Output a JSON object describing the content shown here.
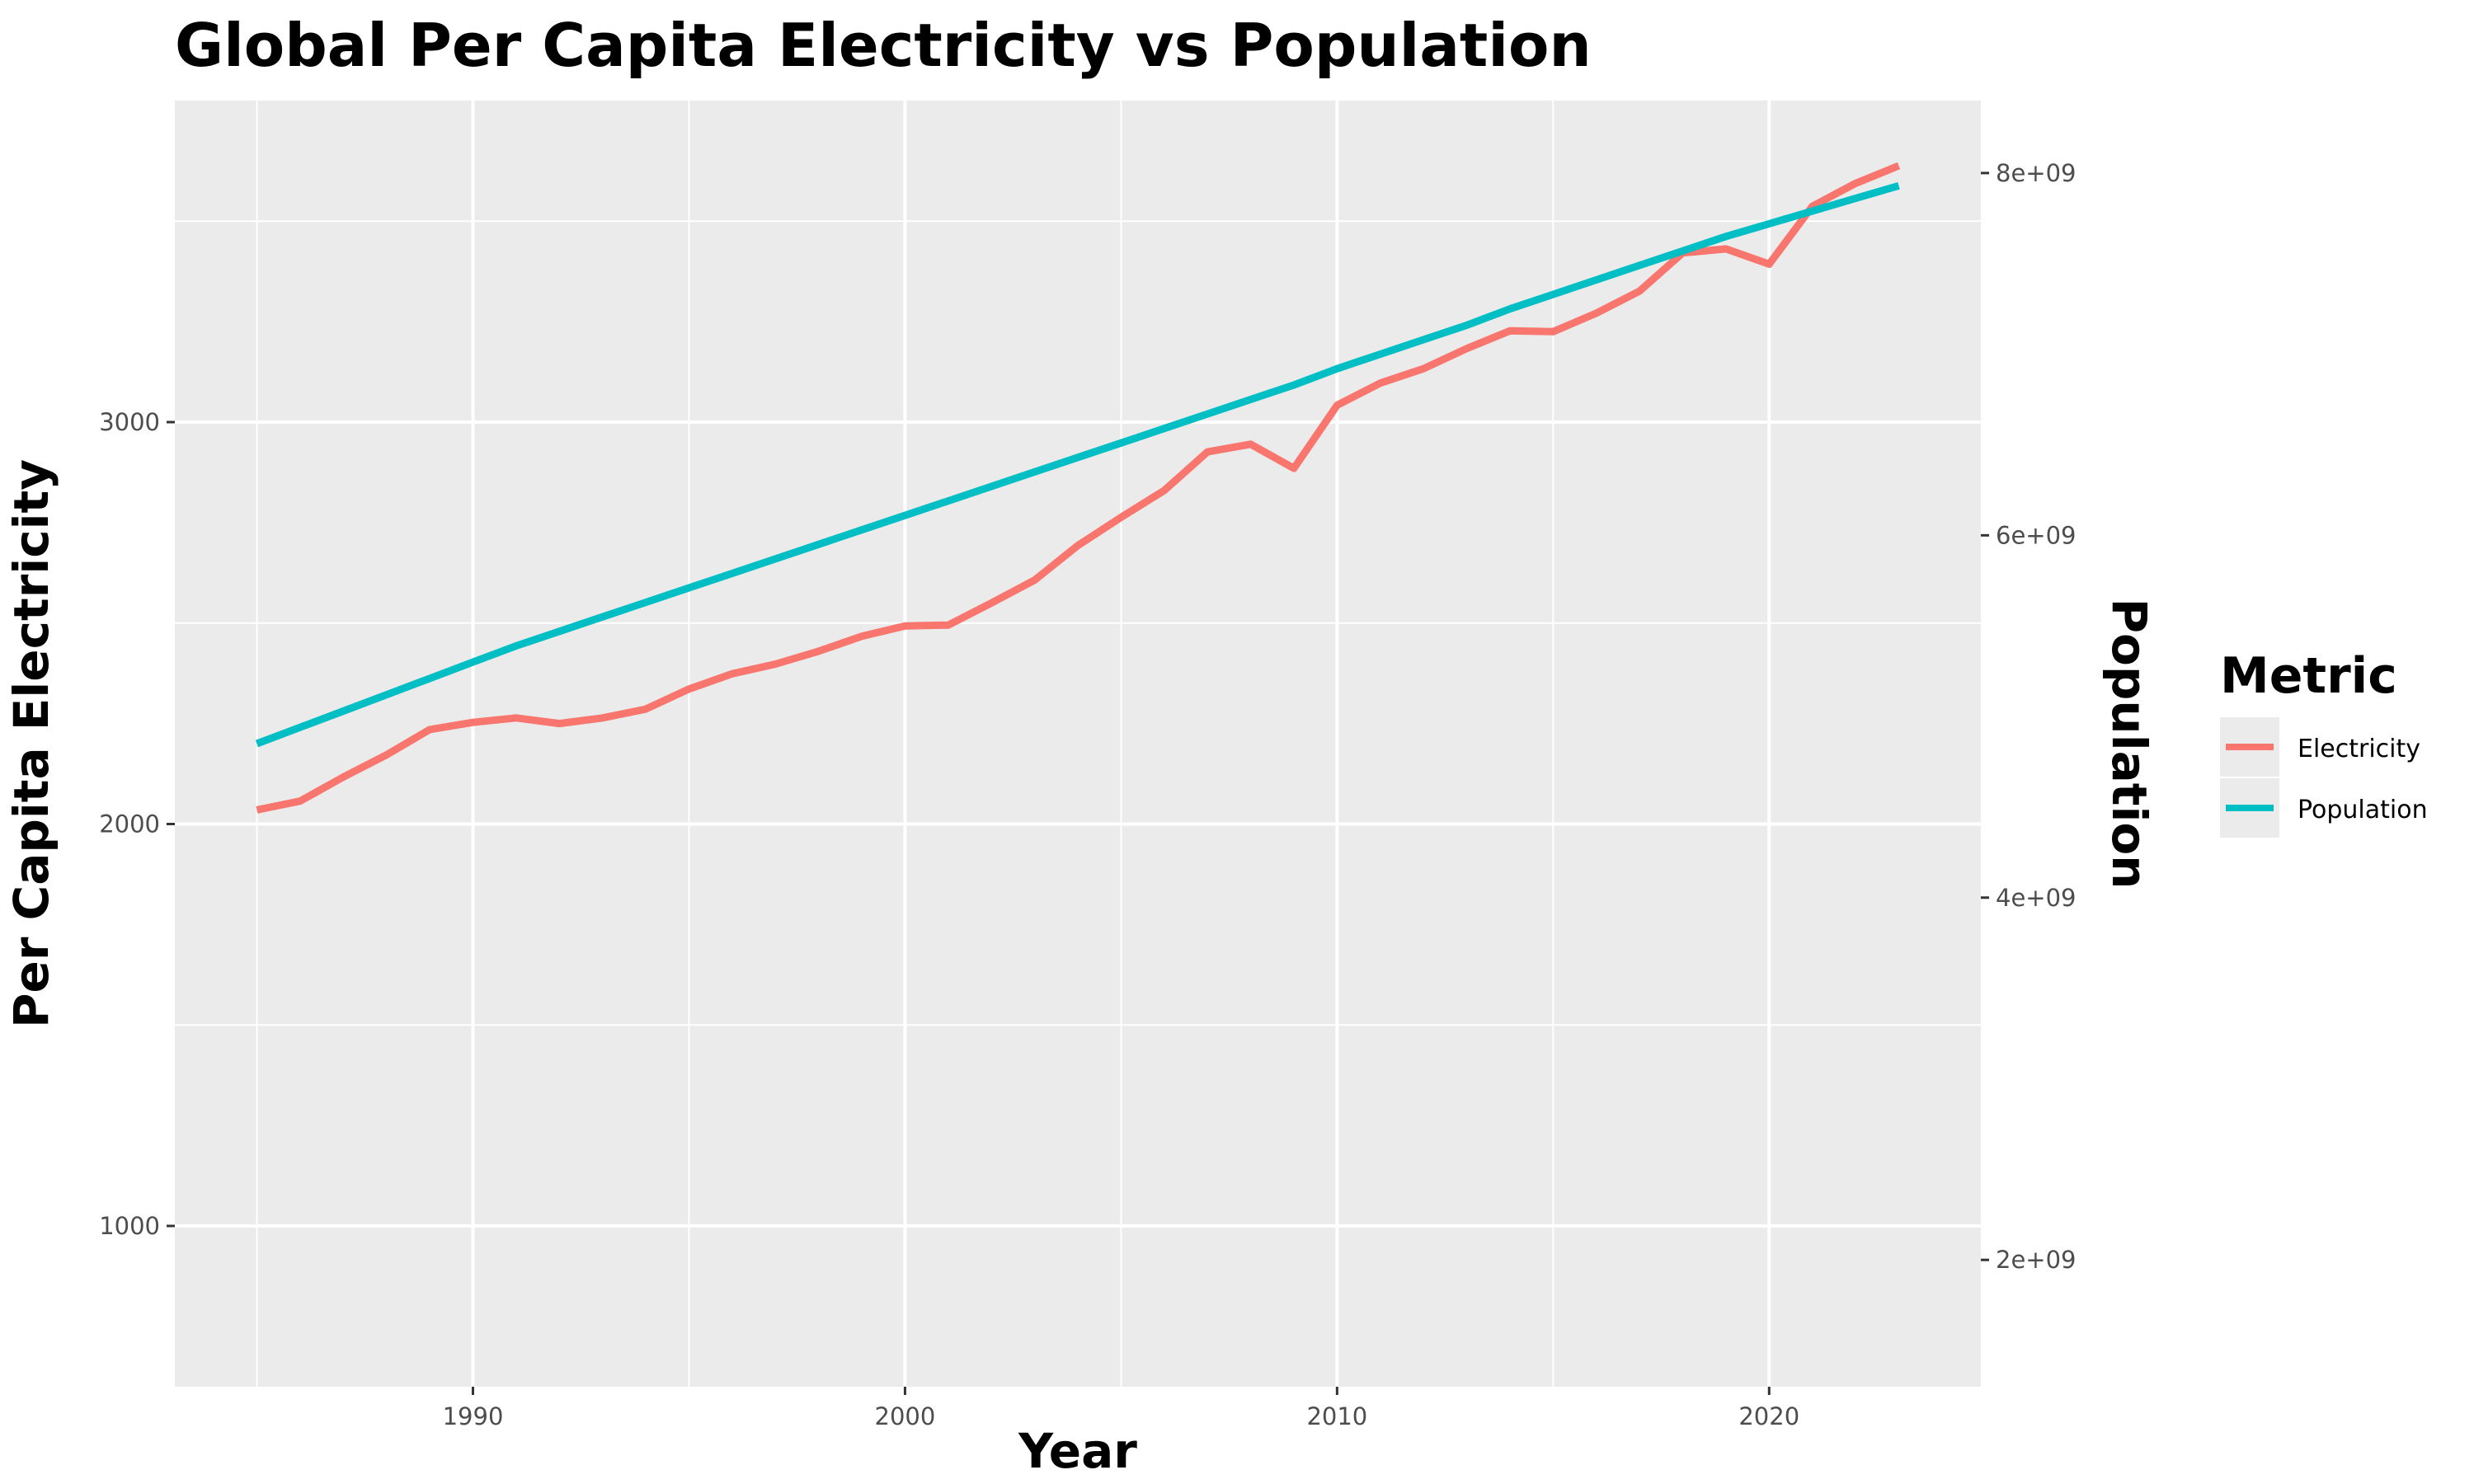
{
  "chart_data": {
    "type": "line",
    "title": "Global Per Capita Electricity vs Population",
    "xlabel": "Year",
    "ylabel": "Per Capita Electricity",
    "y2label": "Population",
    "xlim": [
      1983.1,
      2024.9
    ],
    "ylim": [
      600,
      3800
    ],
    "y2lim": [
      1300000000,
      8400000000
    ],
    "x_ticks": [
      1990,
      2000,
      2010,
      2020
    ],
    "x_tick_labels": [
      "1990",
      "2000",
      "2010",
      "2020"
    ],
    "y_ticks": [
      1000,
      2000,
      3000
    ],
    "y_tick_labels": [
      "1000",
      "2000",
      "3000"
    ],
    "y2_ticks": [
      2000000000,
      4000000000,
      6000000000,
      8000000000
    ],
    "y2_tick_labels": [
      "2e+09",
      "4e+09",
      "6e+09",
      "8e+09"
    ],
    "grid": true,
    "legend": {
      "title": "Metric",
      "placement": "right"
    },
    "x": [
      1985,
      1986,
      1987,
      1988,
      1989,
      1990,
      1991,
      1992,
      1993,
      1994,
      1995,
      1996,
      1997,
      1998,
      1999,
      2000,
      2001,
      2002,
      2003,
      2004,
      2005,
      2006,
      2007,
      2008,
      2009,
      2010,
      2011,
      2012,
      2013,
      2014,
      2015,
      2016,
      2017,
      2018,
      2019,
      2020,
      2021,
      2022,
      2023
    ],
    "series": [
      {
        "name": "Electricity",
        "axis": "left",
        "color": "#F8766D",
        "values": [
          2035,
          2057,
          2117,
          2172,
          2235,
          2253,
          2264,
          2250,
          2264,
          2286,
          2336,
          2374,
          2398,
          2430,
          2467,
          2493,
          2495,
          2550,
          2607,
          2693,
          2763,
          2830,
          2926,
          2945,
          2885,
          3042,
          3097,
          3133,
          3183,
          3227,
          3225,
          3271,
          3326,
          3421,
          3431,
          3393,
          3537,
          3594,
          3638
        ]
      },
      {
        "name": "Population",
        "axis": "right",
        "color": "#00BFC4",
        "values": [
          4850000000,
          4940000000,
          5030000000,
          5120000000,
          5210000000,
          5300000000,
          5390000000,
          5470000000,
          5550000000,
          5630000000,
          5710000000,
          5790000000,
          5870000000,
          5950000000,
          6030000000,
          6110000000,
          6190000000,
          6270000000,
          6350000000,
          6430000000,
          6510000000,
          6590000000,
          6670000000,
          6750000000,
          6830000000,
          6920000000,
          7000000000,
          7080000000,
          7160000000,
          7250000000,
          7330000000,
          7410000000,
          7490000000,
          7570000000,
          7650000000,
          7720000000,
          7790000000,
          7860000000,
          7930000000
        ]
      }
    ]
  }
}
